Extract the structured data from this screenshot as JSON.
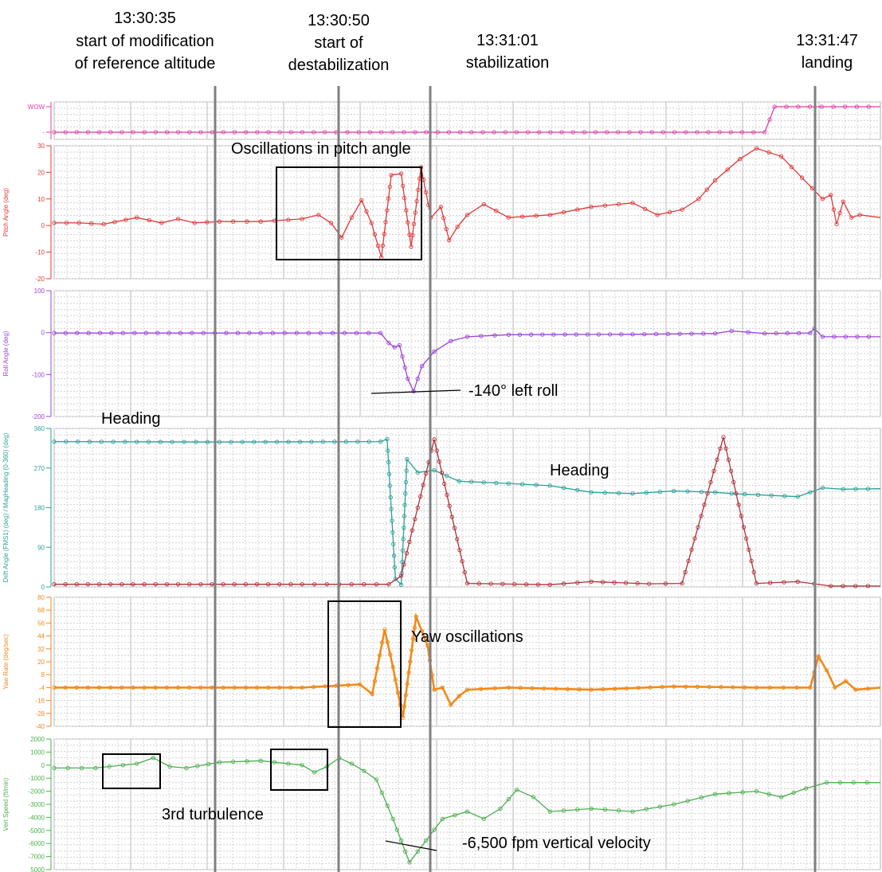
{
  "events": [
    {
      "time": "13:30:35",
      "line1": "start of modification",
      "line2": "of reference altitude"
    },
    {
      "time": "13:30:50",
      "line1": "start of",
      "line2": "destabilization"
    },
    {
      "time": "13:31:01",
      "line1": "stabilization",
      "line2": ""
    },
    {
      "time": "13:31:47",
      "line1": "landing",
      "line2": ""
    }
  ],
  "annotations": {
    "pitch_box": "Oscillations in pitch angle",
    "roll_note": "-140° left roll",
    "heading_left": "Heading",
    "heading_right": "Heading",
    "yaw_box": "Yaw oscillations",
    "turbulence": "3rd turbulence",
    "vs_note": "-6,500 fpm vertical velocity"
  },
  "colors": {
    "wow": "#e040a8",
    "pitch": "#e03a3a",
    "roll": "#9a45d8",
    "heading": "#2aa198",
    "drift": "#b0303a",
    "yaw": "#f08a1c",
    "vs": "#4caf50",
    "event_line": "#808080"
  },
  "chart_data": {
    "type": "line",
    "x_unit": "time (13:30:15 – 13:31:50)",
    "panels": [
      {
        "id": "wow",
        "ylabel": "",
        "ticks": [
          "WOW",
          "-"
        ],
        "series": [
          {
            "name": "WOW",
            "color_key": "wow",
            "points": [
              [
                0,
                0
              ],
              [
                0.86,
                0
              ],
              [
                0.872,
                1
              ],
              [
                1,
                1
              ]
            ]
          }
        ]
      },
      {
        "id": "pitch",
        "ylabel": "Pitch Angle (deg)",
        "ylim": [
          -20,
          30
        ],
        "ticks": [
          "30",
          "20",
          "10",
          "0",
          "-10",
          "-20"
        ],
        "series": [
          {
            "name": "Pitch",
            "color_key": "pitch",
            "points": [
              [
                0,
                1
              ],
              [
                0.03,
                1
              ],
              [
                0.06,
                0.5
              ],
              [
                0.1,
                3
              ],
              [
                0.13,
                1
              ],
              [
                0.15,
                2.5
              ],
              [
                0.17,
                1
              ],
              [
                0.2,
                1.5
              ],
              [
                0.25,
                1.5
              ],
              [
                0.3,
                2.5
              ],
              [
                0.32,
                4
              ],
              [
                0.335,
                1
              ],
              [
                0.348,
                -4.5
              ],
              [
                0.36,
                3
              ],
              [
                0.372,
                9.5
              ],
              [
                0.384,
                1
              ],
              [
                0.396,
                -12
              ],
              [
                0.408,
                19
              ],
              [
                0.42,
                19.5
              ],
              [
                0.432,
                -8
              ],
              [
                0.444,
                22
              ],
              [
                0.456,
                3
              ],
              [
                0.468,
                7
              ],
              [
                0.478,
                -5.5
              ],
              [
                0.488,
                -0.5
              ],
              [
                0.5,
                4
              ],
              [
                0.52,
                8
              ],
              [
                0.55,
                3
              ],
              [
                0.6,
                4
              ],
              [
                0.65,
                7
              ],
              [
                0.7,
                8.5
              ],
              [
                0.73,
                4
              ],
              [
                0.76,
                6
              ],
              [
                0.78,
                10
              ],
              [
                0.8,
                17
              ],
              [
                0.83,
                25
              ],
              [
                0.85,
                29
              ],
              [
                0.88,
                26
              ],
              [
                0.905,
                18
              ],
              [
                0.93,
                10
              ],
              [
                0.94,
                11.5
              ],
              [
                0.947,
                0.5
              ],
              [
                0.955,
                9
              ],
              [
                0.965,
                3
              ],
              [
                0.975,
                4
              ],
              [
                1,
                3
              ]
            ]
          }
        ]
      },
      {
        "id": "roll",
        "ylabel": "Roll Angle (deg)",
        "ylim": [
          -200,
          100
        ],
        "ticks": [
          "100",
          "0",
          "-100",
          "-200"
        ],
        "series": [
          {
            "name": "Roll",
            "color_key": "roll",
            "points": [
              [
                0,
                -1
              ],
              [
                0.25,
                -1
              ],
              [
                0.395,
                -1
              ],
              [
                0.405,
                -25
              ],
              [
                0.412,
                -35
              ],
              [
                0.418,
                -30
              ],
              [
                0.428,
                -110
              ],
              [
                0.435,
                -140
              ],
              [
                0.445,
                -80
              ],
              [
                0.46,
                -45
              ],
              [
                0.48,
                -20
              ],
              [
                0.5,
                -10
              ],
              [
                0.55,
                -5
              ],
              [
                0.7,
                -4
              ],
              [
                0.8,
                -2
              ],
              [
                0.82,
                4
              ],
              [
                0.86,
                -2
              ],
              [
                0.915,
                -1
              ],
              [
                0.92,
                10
              ],
              [
                0.93,
                -10
              ],
              [
                1,
                -10
              ]
            ]
          }
        ]
      },
      {
        "id": "heading",
        "ylabel": "Drift Angle (FMS1) (deg) / MagHeading (0-360) (deg)",
        "ylim": [
          0,
          360
        ],
        "ticks": [
          "360",
          "270",
          "180",
          "90",
          "0"
        ],
        "series": [
          {
            "name": "MagHeading",
            "color_key": "heading",
            "points": [
              [
                0,
                330
              ],
              [
                0.2,
                329
              ],
              [
                0.395,
                330
              ],
              [
                0.403,
                336
              ],
              [
                0.413,
                18
              ],
              [
                0.42,
                5
              ],
              [
                0.427,
                290
              ],
              [
                0.44,
                260
              ],
              [
                0.46,
                265
              ],
              [
                0.49,
                240
              ],
              [
                0.55,
                235
              ],
              [
                0.6,
                230
              ],
              [
                0.65,
                215
              ],
              [
                0.7,
                212
              ],
              [
                0.75,
                218
              ],
              [
                0.8,
                215
              ],
              [
                0.82,
                212
              ],
              [
                0.9,
                205
              ],
              [
                0.93,
                225
              ],
              [
                0.955,
                222
              ],
              [
                1,
                223
              ]
            ]
          },
          {
            "name": "Drift Angle",
            "color_key": "drift",
            "points": [
              [
                0,
                6
              ],
              [
                0.3,
                6
              ],
              [
                0.405,
                6
              ],
              [
                0.42,
                25
              ],
              [
                0.46,
                335
              ],
              [
                0.5,
                8
              ],
              [
                0.6,
                5
              ],
              [
                0.65,
                12
              ],
              [
                0.72,
                7
              ],
              [
                0.76,
                8
              ],
              [
                0.81,
                340
              ],
              [
                0.85,
                8
              ],
              [
                0.9,
                12
              ],
              [
                0.94,
                2
              ],
              [
                1,
                2
              ]
            ]
          }
        ]
      },
      {
        "id": "yaw",
        "ylabel": "Yaw Rate (deg/sec)",
        "ylim": [
          -40,
          80
        ],
        "ticks": [
          "80",
          "68",
          "56",
          "44",
          "32",
          "20",
          "8",
          "-4",
          "-16",
          "-28",
          "-40"
        ],
        "series": [
          {
            "name": "Yaw Rate",
            "color_key": "yaw",
            "points": [
              [
                0,
                -4
              ],
              [
                0.3,
                -4
              ],
              [
                0.37,
                -1
              ],
              [
                0.385,
                -10
              ],
              [
                0.4,
                50
              ],
              [
                0.41,
                15
              ],
              [
                0.422,
                -32
              ],
              [
                0.438,
                62
              ],
              [
                0.452,
                35
              ],
              [
                0.46,
                -6
              ],
              [
                0.47,
                -4
              ],
              [
                0.48,
                -20
              ],
              [
                0.49,
                -12
              ],
              [
                0.5,
                -6
              ],
              [
                0.55,
                -4
              ],
              [
                0.65,
                -6
              ],
              [
                0.75,
                -3
              ],
              [
                0.85,
                -4
              ],
              [
                0.915,
                -4
              ],
              [
                0.925,
                25
              ],
              [
                0.935,
                12
              ],
              [
                0.945,
                -4
              ],
              [
                0.958,
                2
              ],
              [
                0.97,
                -6
              ],
              [
                1,
                -4
              ]
            ]
          }
        ]
      },
      {
        "id": "vs",
        "ylabel": "Vert Speed (ft/min)",
        "ylim": [
          -7000,
          2000
        ],
        "ticks": [
          "2000",
          "1000",
          "0",
          "-1000",
          "-2000",
          "-3000",
          "-4000",
          "-5000",
          "-6000",
          "-7000",
          "5000"
        ],
        "series": [
          {
            "name": "Vert Speed",
            "color_key": "vs",
            "points": [
              [
                0,
                0
              ],
              [
                0.05,
                0
              ],
              [
                0.1,
                300
              ],
              [
                0.12,
                700
              ],
              [
                0.14,
                100
              ],
              [
                0.16,
                0
              ],
              [
                0.2,
                400
              ],
              [
                0.25,
                500
              ],
              [
                0.3,
                200
              ],
              [
                0.315,
                -300
              ],
              [
                0.33,
                100
              ],
              [
                0.345,
                700
              ],
              [
                0.36,
                300
              ],
              [
                0.375,
                -200
              ],
              [
                0.39,
                -800
              ],
              [
                0.41,
                -3500
              ],
              [
                0.43,
                -6500
              ],
              [
                0.45,
                -5000
              ],
              [
                0.47,
                -3500
              ],
              [
                0.5,
                -3000
              ],
              [
                0.52,
                -3500
              ],
              [
                0.54,
                -2800
              ],
              [
                0.56,
                -1500
              ],
              [
                0.58,
                -2000
              ],
              [
                0.6,
                -3000
              ],
              [
                0.65,
                -2800
              ],
              [
                0.7,
                -3000
              ],
              [
                0.75,
                -2500
              ],
              [
                0.8,
                -1800
              ],
              [
                0.85,
                -1600
              ],
              [
                0.88,
                -2000
              ],
              [
                0.91,
                -1400
              ],
              [
                0.935,
                -1000
              ],
              [
                1,
                -1000
              ]
            ]
          }
        ]
      }
    ]
  }
}
